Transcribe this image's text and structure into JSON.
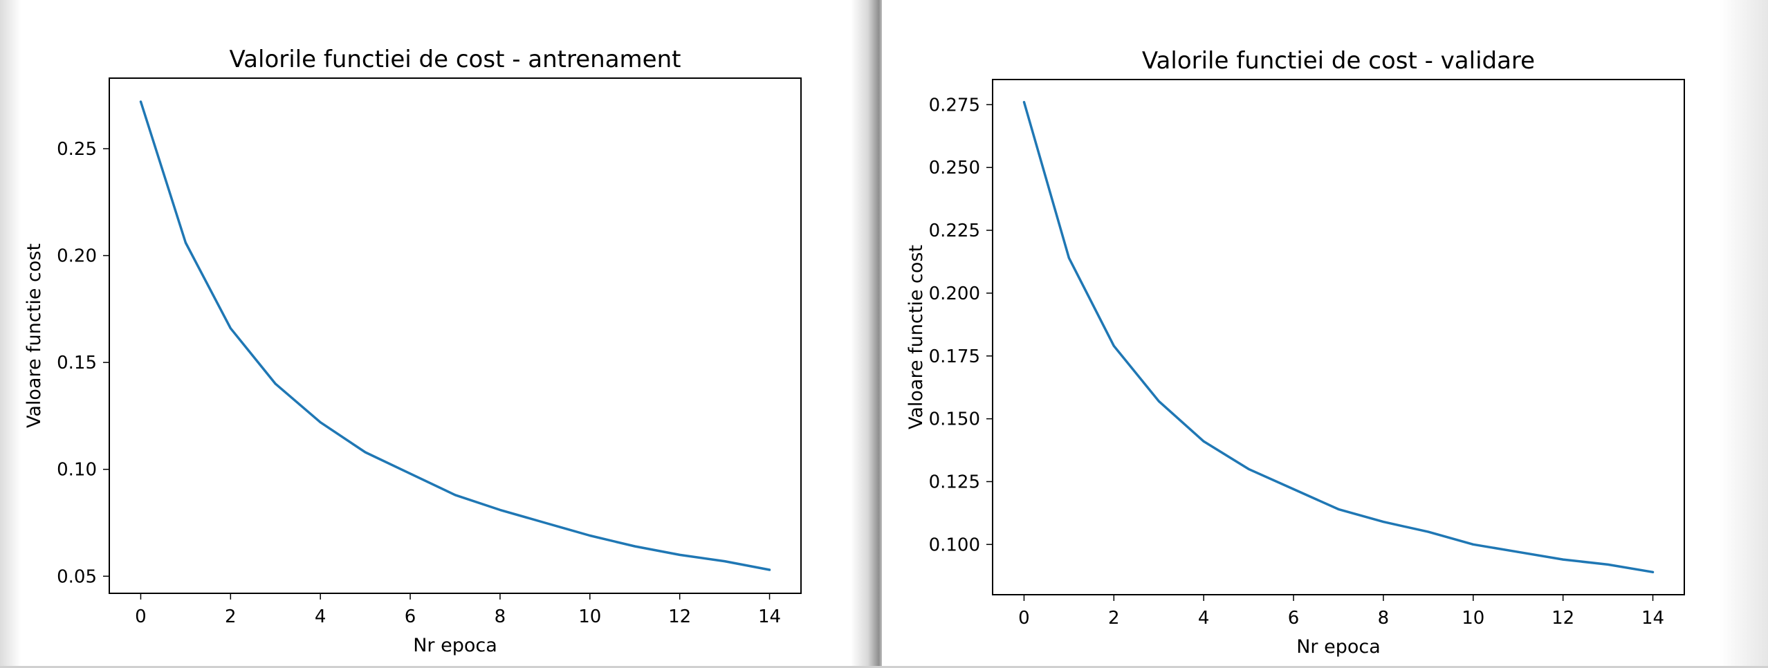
{
  "chart_data": [
    {
      "type": "line",
      "title": "Valorile functiei de cost - antrenament",
      "xlabel": "Nr epoca",
      "ylabel": "Valoare functie cost",
      "xlim": [
        -0.7,
        14.7
      ],
      "ylim": [
        0.042,
        0.283
      ],
      "xticks": [
        0,
        2,
        4,
        6,
        8,
        10,
        12,
        14
      ],
      "xtick_labels": [
        "0",
        "2",
        "4",
        "6",
        "8",
        "10",
        "12",
        "14"
      ],
      "yticks": [
        0.05,
        0.1,
        0.15,
        0.2,
        0.25
      ],
      "ytick_labels": [
        "0.05",
        "0.10",
        "0.15",
        "0.20",
        "0.25"
      ],
      "grid": false,
      "series": [
        {
          "color": "#1f77b4",
          "x": [
            0,
            1,
            2,
            3,
            4,
            5,
            6,
            7,
            8,
            9,
            10,
            11,
            12,
            13,
            14
          ],
          "y": [
            0.272,
            0.206,
            0.166,
            0.14,
            0.122,
            0.108,
            0.098,
            0.088,
            0.081,
            0.075,
            0.069,
            0.064,
            0.06,
            0.057,
            0.053
          ]
        }
      ]
    },
    {
      "type": "line",
      "title": "Valorile functiei de cost - validare",
      "xlabel": "Nr epoca",
      "ylabel": "Valoare functie cost",
      "xlim": [
        -0.7,
        14.7
      ],
      "ylim": [
        0.08,
        0.285
      ],
      "xticks": [
        0,
        2,
        4,
        6,
        8,
        10,
        12,
        14
      ],
      "xtick_labels": [
        "0",
        "2",
        "4",
        "6",
        "8",
        "10",
        "12",
        "14"
      ],
      "yticks": [
        0.1,
        0.125,
        0.15,
        0.175,
        0.2,
        0.225,
        0.25,
        0.275
      ],
      "ytick_labels": [
        "0.100",
        "0.125",
        "0.150",
        "0.175",
        "0.200",
        "0.225",
        "0.250",
        "0.275"
      ],
      "grid": false,
      "series": [
        {
          "color": "#1f77b4",
          "x": [
            0,
            1,
            2,
            3,
            4,
            5,
            6,
            7,
            8,
            9,
            10,
            11,
            12,
            13,
            14
          ],
          "y": [
            0.276,
            0.214,
            0.179,
            0.157,
            0.141,
            0.13,
            0.122,
            0.114,
            0.109,
            0.105,
            0.1,
            0.097,
            0.094,
            0.092,
            0.089
          ]
        }
      ]
    }
  ]
}
